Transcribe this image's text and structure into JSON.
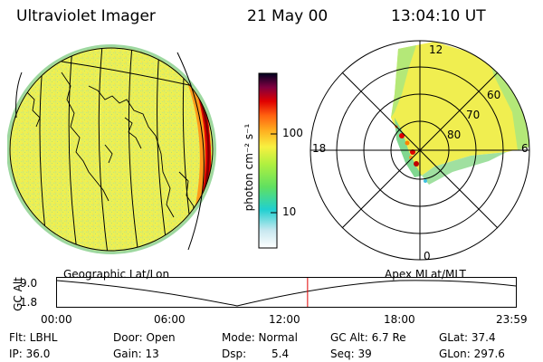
{
  "header": {
    "instrument": "Ultraviolet Imager",
    "date": "21 May 00",
    "time": "13:04:10 UT"
  },
  "colorbar": {
    "unit_label": "photon cm⁻² s⁻¹",
    "ticks": [
      "100",
      "10"
    ]
  },
  "polar_plot": {
    "mlt_labels": {
      "top": "12",
      "left": "18",
      "right": "6",
      "bottom": "0"
    },
    "lat_labels": [
      "60",
      "70",
      "80"
    ]
  },
  "timeline": {
    "axis_label": "GC Alt",
    "y_ticks": [
      "9.0",
      "1.8"
    ],
    "left_caption": "Geographic Lat/Lon",
    "right_caption": "Apex MLat/MLT",
    "x_ticks": [
      "00:00",
      "06:00",
      "12:00",
      "18:00",
      "23:59"
    ],
    "current_time_fraction": 0.545,
    "marker_color": "#e00000"
  },
  "footer": {
    "row1": [
      {
        "label": "Flt: LBHL"
      },
      {
        "label": "Door: Open"
      },
      {
        "label": "Mode: Normal"
      },
      {
        "label": "GC Alt: 6.7 Re"
      },
      {
        "label": "GLat: 37.4"
      }
    ],
    "row2": [
      {
        "label": "IP: 36.0"
      },
      {
        "label": "Gain: 13"
      },
      {
        "label": "Dsp:"
      },
      {
        "label": "5.4"
      },
      {
        "label": "Seq: 39"
      },
      {
        "label": "GLon: 297.6"
      }
    ]
  }
}
